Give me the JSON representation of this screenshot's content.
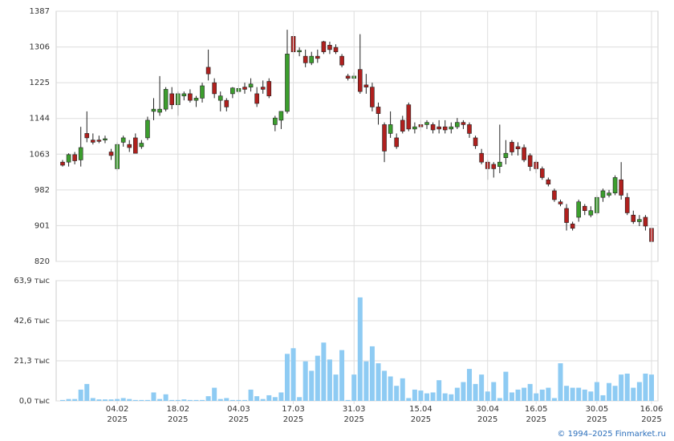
{
  "chart_data": [
    {
      "type": "candlestick",
      "x": [
        "2025-01-22",
        "2025-01-23",
        "2025-01-24",
        "2025-01-27",
        "2025-01-28",
        "2025-01-29",
        "2025-01-30",
        "2025-01-31",
        "2025-02-03",
        "2025-02-04",
        "2025-02-05",
        "2025-02-06",
        "2025-02-07",
        "2025-02-10",
        "2025-02-11",
        "2025-02-12",
        "2025-02-13",
        "2025-02-14",
        "2025-02-17",
        "2025-02-18",
        "2025-02-19",
        "2025-02-20",
        "2025-02-21",
        "2025-02-24",
        "2025-02-25",
        "2025-02-26",
        "2025-02-27",
        "2025-02-28",
        "2025-03-03",
        "2025-03-04",
        "2025-03-05",
        "2025-03-06",
        "2025-03-07",
        "2025-03-10",
        "2025-03-11",
        "2025-03-12",
        "2025-03-13",
        "2025-03-14",
        "2025-03-17",
        "2025-03-18",
        "2025-03-19",
        "2025-03-20",
        "2025-03-21",
        "2025-03-24",
        "2025-03-25",
        "2025-03-26",
        "2025-03-27",
        "2025-03-28",
        "2025-03-31",
        "2025-04-01",
        "2025-04-02",
        "2025-04-03",
        "2025-04-04",
        "2025-04-07",
        "2025-04-08",
        "2025-04-09",
        "2025-04-10",
        "2025-04-11",
        "2025-04-14",
        "2025-04-15",
        "2025-04-16",
        "2025-04-17",
        "2025-04-18",
        "2025-04-21",
        "2025-04-22",
        "2025-04-23",
        "2025-04-24",
        "2025-04-25",
        "2025-04-28",
        "2025-04-29",
        "2025-04-30",
        "2025-05-05",
        "2025-05-06",
        "2025-05-07",
        "2025-05-12",
        "2025-05-13",
        "2025-05-14",
        "2025-05-15",
        "2025-05-16",
        "2025-05-19",
        "2025-05-20",
        "2025-05-21",
        "2025-05-22",
        "2025-05-23",
        "2025-05-26",
        "2025-05-27",
        "2025-05-28",
        "2025-05-29",
        "2025-05-30",
        "2025-06-02",
        "2025-06-03",
        "2025-06-04",
        "2025-06-05",
        "2025-06-06",
        "2025-06-09",
        "2025-06-10",
        "2025-06-11",
        "2025-06-16"
      ],
      "open": [
        1045,
        1045,
        1062,
        1050,
        1110,
        1095,
        1095,
        1095,
        1068,
        1030,
        1090,
        1085,
        1100,
        1080,
        1100,
        1160,
        1158,
        1165,
        1200,
        1175,
        1195,
        1200,
        1185,
        1190,
        1260,
        1225,
        1185,
        1185,
        1200,
        1205,
        1215,
        1215,
        1200,
        1215,
        1228,
        1130,
        1140,
        1160,
        1330,
        1295,
        1285,
        1270,
        1285,
        1318,
        1310,
        1305,
        1285,
        1240,
        1235,
        1255,
        1220,
        1215,
        1170,
        1130,
        1110,
        1100,
        1140,
        1175,
        1120,
        1130,
        1130,
        1130,
        1125,
        1125,
        1120,
        1125,
        1135,
        1130,
        1100,
        1065,
        1045,
        1040,
        1035,
        1055,
        1090,
        1080,
        1078,
        1060,
        1045,
        1030,
        1005,
        980,
        955,
        940,
        905,
        920,
        945,
        925,
        930,
        965,
        970,
        975,
        1005,
        965,
        925,
        910,
        920,
        895
      ],
      "high": [
        1050,
        1065,
        1068,
        1125,
        1160,
        1110,
        1105,
        1105,
        1075,
        1090,
        1105,
        1095,
        1110,
        1095,
        1148,
        1190,
        1240,
        1215,
        1215,
        1205,
        1205,
        1210,
        1195,
        1225,
        1300,
        1235,
        1205,
        1190,
        1215,
        1220,
        1225,
        1235,
        1215,
        1230,
        1235,
        1150,
        1160,
        1345,
        1340,
        1305,
        1300,
        1295,
        1300,
        1320,
        1318,
        1312,
        1290,
        1245,
        1248,
        1335,
        1245,
        1225,
        1180,
        1135,
        1160,
        1110,
        1150,
        1180,
        1135,
        1140,
        1140,
        1135,
        1140,
        1140,
        1135,
        1145,
        1140,
        1135,
        1105,
        1075,
        1050,
        1045,
        1130,
        1095,
        1095,
        1090,
        1085,
        1065,
        1050,
        1035,
        1010,
        985,
        960,
        950,
        910,
        960,
        950,
        945,
        970,
        985,
        982,
        1015,
        1045,
        975,
        935,
        925,
        925,
        898
      ],
      "low": [
        1035,
        1035,
        1040,
        1035,
        1090,
        1085,
        1088,
        1088,
        1050,
        1025,
        1080,
        1068,
        1065,
        1075,
        1095,
        1140,
        1150,
        1160,
        1165,
        1150,
        1185,
        1180,
        1170,
        1180,
        1230,
        1190,
        1160,
        1160,
        1190,
        1200,
        1200,
        1205,
        1170,
        1200,
        1190,
        1115,
        1120,
        1155,
        1280,
        1285,
        1260,
        1265,
        1270,
        1290,
        1290,
        1290,
        1260,
        1230,
        1225,
        1200,
        1200,
        1160,
        1130,
        1045,
        1100,
        1075,
        1110,
        1115,
        1110,
        1115,
        1120,
        1110,
        1110,
        1110,
        1110,
        1120,
        1120,
        1100,
        1075,
        1040,
        1005,
        1010,
        1020,
        1040,
        1060,
        1060,
        1045,
        1025,
        1020,
        1005,
        990,
        955,
        945,
        890,
        890,
        910,
        925,
        920,
        925,
        955,
        965,
        970,
        960,
        925,
        905,
        900,
        890,
        860
      ],
      "close": [
        1038,
        1062,
        1048,
        1078,
        1100,
        1090,
        1092,
        1098,
        1060,
        1085,
        1100,
        1078,
        1065,
        1088,
        1140,
        1165,
        1165,
        1210,
        1175,
        1200,
        1200,
        1185,
        1190,
        1218,
        1245,
        1200,
        1195,
        1170,
        1213,
        1212,
        1210,
        1222,
        1178,
        1210,
        1195,
        1145,
        1160,
        1290,
        1295,
        1298,
        1270,
        1285,
        1280,
        1295,
        1300,
        1295,
        1265,
        1235,
        1240,
        1205,
        1215,
        1170,
        1155,
        1070,
        1130,
        1080,
        1115,
        1120,
        1125,
        1125,
        1135,
        1118,
        1120,
        1118,
        1125,
        1135,
        1130,
        1110,
        1082,
        1045,
        1030,
        1030,
        1045,
        1065,
        1068,
        1075,
        1050,
        1035,
        1030,
        1010,
        995,
        960,
        950,
        908,
        895,
        955,
        935,
        935,
        965,
        980,
        975,
        1010,
        970,
        930,
        910,
        915,
        900,
        865
      ],
      "up_color": "#3c9e2e",
      "down_color": "#b0201e",
      "ylim": [
        820,
        1387
      ],
      "yticks": [
        820,
        901,
        982,
        1063,
        1144,
        1225,
        1306,
        1387
      ],
      "grid": true
    },
    {
      "type": "bar",
      "values": [
        0.5,
        1,
        1,
        6,
        9,
        1.5,
        0.8,
        0.8,
        0.8,
        1,
        1.5,
        1,
        0.5,
        0.5,
        0.5,
        4.5,
        1,
        3.5,
        0.5,
        0.5,
        0.8,
        0.5,
        0.5,
        0.5,
        2.5,
        7,
        1,
        1.5,
        0.5,
        0.5,
        0.5,
        6,
        2.5,
        1,
        3,
        2,
        4.5,
        25,
        28,
        2,
        21,
        16,
        24,
        31,
        22,
        14,
        27,
        0.5,
        14,
        55,
        21,
        29,
        20,
        16,
        13,
        8,
        12,
        1.5,
        6,
        5.5,
        4,
        4.5,
        11,
        4,
        3.5,
        7,
        10,
        17,
        9,
        14,
        5,
        10,
        1.5,
        15.5,
        4.5,
        6,
        7,
        9,
        4,
        6,
        7,
        1.5,
        20,
        8,
        7,
        7,
        6,
        5,
        10,
        3,
        9.5,
        8,
        14,
        14.5,
        7,
        10,
        14.5,
        14
      ],
      "color": "#8ecbf3",
      "ylim": [
        0,
        63.9
      ],
      "yticks": [
        {
          "value": 0,
          "label": "0,0 тыс"
        },
        {
          "value": 21.3,
          "label": "21,3 тыс"
        },
        {
          "value": 42.6,
          "label": "42,6 тыс"
        },
        {
          "value": 63.9,
          "label": "63,9 тыс"
        }
      ],
      "xticks": [
        {
          "value": "2025-02-04",
          "label": "04.02\n2025"
        },
        {
          "value": "2025-02-18",
          "label": "18.02\n2025"
        },
        {
          "value": "2025-03-04",
          "label": "04.03\n2025"
        },
        {
          "value": "2025-03-17",
          "label": "17.03\n2025"
        },
        {
          "value": "2025-03-31",
          "label": "31.03\n2025"
        },
        {
          "value": "2025-04-15",
          "label": "15.04\n2025"
        },
        {
          "value": "2025-04-30",
          "label": "30.04\n2025"
        },
        {
          "value": "2025-05-16",
          "label": "16.05\n2025"
        },
        {
          "value": "2025-05-30",
          "label": "30.05\n2025"
        },
        {
          "value": "2025-06-16",
          "label": "16.06\n2025"
        }
      ],
      "grid": true
    }
  ],
  "footer": "© 1994–2025 Finmarket.ru"
}
